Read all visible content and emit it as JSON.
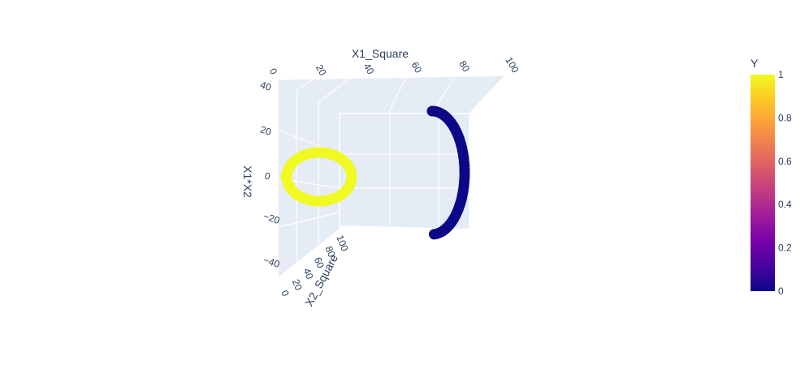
{
  "chart_data": {
    "type": "scatter3d",
    "axes": {
      "x": {
        "title": "X1_Square",
        "ticks": [
          "0",
          "20",
          "40",
          "60",
          "80",
          "100"
        ],
        "range": [
          0,
          100
        ]
      },
      "y": {
        "title": "X2_Square",
        "ticks": [
          "0",
          "20",
          "40",
          "60",
          "80",
          "100"
        ],
        "range": [
          0,
          100
        ]
      },
      "z": {
        "title": "X1*X2",
        "ticks": [
          "−40",
          "−20",
          "0",
          "20",
          "40"
        ],
        "range": [
          -45,
          45
        ]
      }
    },
    "colorbar": {
      "title": "Y",
      "ticks": [
        "0",
        "0.2",
        "0.4",
        "0.6",
        "0.8",
        "1"
      ],
      "range": [
        0,
        1
      ],
      "colorscale": [
        "#0d0887",
        "#46039f",
        "#7201a8",
        "#9c179e",
        "#bd3786",
        "#d8576b",
        "#ed7953",
        "#fb9f3a",
        "#fdca26",
        "#f0f921"
      ]
    },
    "series": [
      {
        "class": 1,
        "color": "#f0f921",
        "shape": "ring"
      },
      {
        "class": 0,
        "color": "#0d0887",
        "shape": "arc"
      }
    ],
    "grid": true,
    "legend": "colorbar-right"
  }
}
